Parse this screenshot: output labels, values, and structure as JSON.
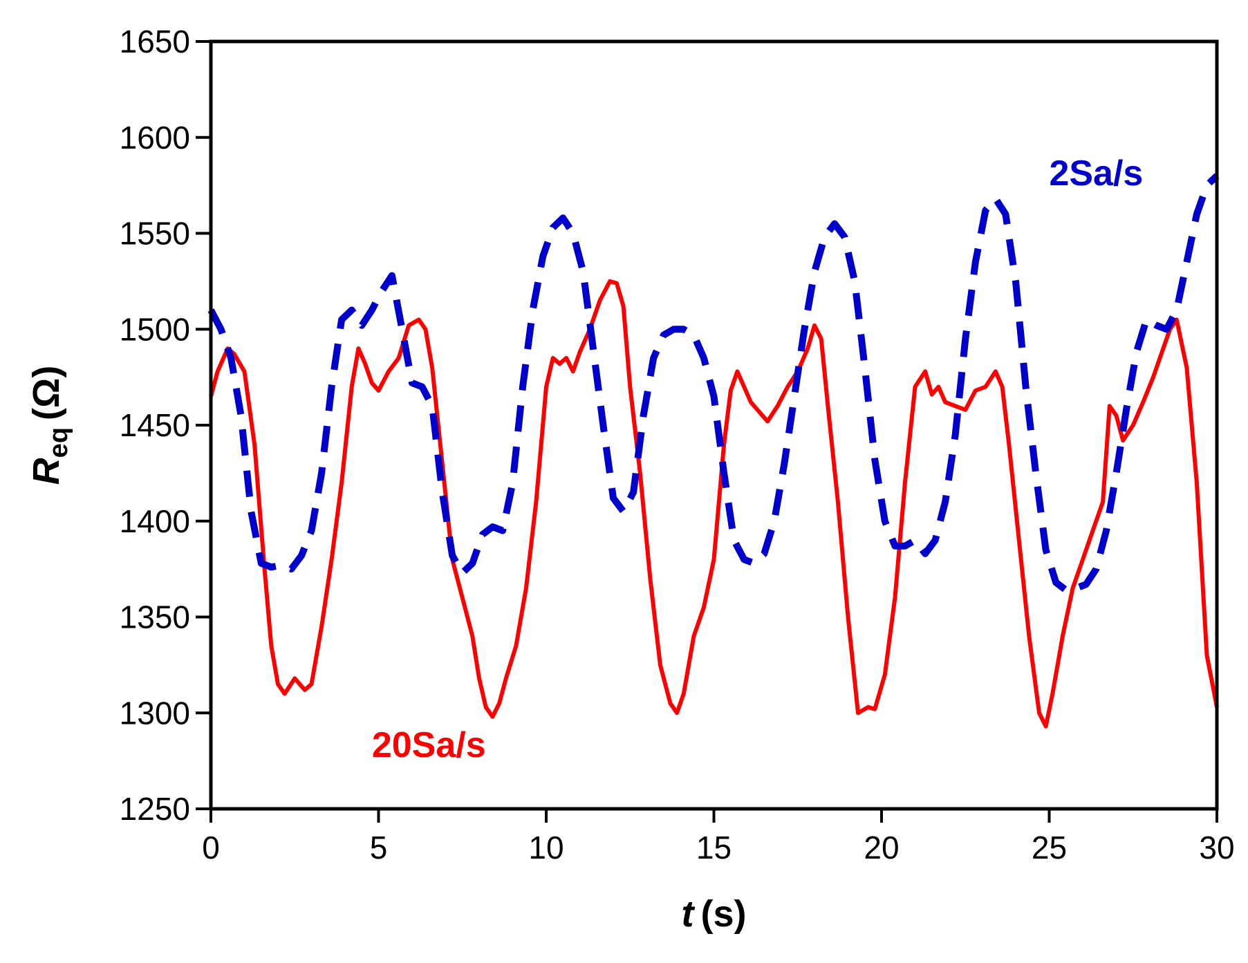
{
  "chart_data": {
    "type": "line",
    "title": "",
    "xlabel": {
      "var": "t",
      "unit": "(s)"
    },
    "ylabel": {
      "var": "R",
      "sub": "eq",
      "unit": "(Ω)"
    },
    "xlim": [
      0,
      30
    ],
    "ylim": [
      1250,
      1650
    ],
    "xticks": [
      0,
      5,
      10,
      15,
      20,
      25,
      30
    ],
    "yticks": [
      1250,
      1300,
      1350,
      1400,
      1450,
      1500,
      1550,
      1600,
      1650
    ],
    "grid": false,
    "legend": "none",
    "series": [
      {
        "name": "20Sa/s",
        "color": "#ff0000",
        "style": "solid",
        "label_at": [
          6.5,
          1277
        ],
        "x": [
          0,
          0.2,
          0.5,
          0.7,
          1.0,
          1.3,
          1.6,
          1.8,
          2.0,
          2.2,
          2.5,
          2.8,
          3.0,
          3.3,
          3.6,
          3.9,
          4.2,
          4.4,
          4.6,
          4.8,
          5.0,
          5.3,
          5.6,
          5.9,
          6.2,
          6.4,
          6.6,
          6.9,
          7.2,
          7.5,
          7.8,
          8.0,
          8.2,
          8.4,
          8.6,
          8.8,
          9.1,
          9.4,
          9.7,
          10.0,
          10.2,
          10.4,
          10.6,
          10.8,
          11.0,
          11.3,
          11.6,
          11.9,
          12.1,
          12.3,
          12.5,
          12.8,
          13.1,
          13.4,
          13.7,
          13.9,
          14.1,
          14.4,
          14.7,
          15.0,
          15.3,
          15.5,
          15.7,
          15.9,
          16.1,
          16.3,
          16.6,
          16.9,
          17.2,
          17.5,
          17.8,
          18.0,
          18.2,
          18.4,
          18.7,
          19.0,
          19.3,
          19.6,
          19.8,
          20.1,
          20.4,
          20.7,
          21.0,
          21.3,
          21.5,
          21.7,
          21.9,
          22.2,
          22.5,
          22.8,
          23.1,
          23.4,
          23.6,
          23.8,
          24.1,
          24.4,
          24.7,
          24.9,
          25.1,
          25.4,
          25.7,
          26.0,
          26.3,
          26.6,
          26.8,
          27.0,
          27.2,
          27.5,
          27.8,
          28.1,
          28.4,
          28.6,
          28.8,
          29.1,
          29.4,
          29.7,
          30.0
        ],
        "y": [
          1465,
          1478,
          1490,
          1487,
          1478,
          1440,
          1375,
          1335,
          1315,
          1310,
          1318,
          1312,
          1315,
          1345,
          1380,
          1420,
          1470,
          1490,
          1482,
          1472,
          1468,
          1478,
          1485,
          1502,
          1505,
          1500,
          1480,
          1430,
          1380,
          1360,
          1340,
          1318,
          1303,
          1298,
          1305,
          1318,
          1335,
          1365,
          1410,
          1470,
          1485,
          1482,
          1485,
          1478,
          1488,
          1500,
          1515,
          1525,
          1524,
          1512,
          1470,
          1425,
          1370,
          1325,
          1305,
          1300,
          1310,
          1340,
          1355,
          1380,
          1440,
          1468,
          1478,
          1470,
          1462,
          1458,
          1452,
          1460,
          1470,
          1478,
          1490,
          1502,
          1495,
          1460,
          1410,
          1350,
          1300,
          1303,
          1302,
          1320,
          1360,
          1420,
          1470,
          1478,
          1466,
          1470,
          1462,
          1460,
          1458,
          1468,
          1470,
          1478,
          1470,
          1440,
          1390,
          1340,
          1300,
          1293,
          1310,
          1340,
          1365,
          1380,
          1395,
          1410,
          1460,
          1455,
          1442,
          1450,
          1462,
          1475,
          1490,
          1500,
          1505,
          1480,
          1420,
          1330,
          1303
        ]
      },
      {
        "name": "2Sa/s",
        "color": "#0000cc",
        "style": "dashed",
        "label_at": [
          26.4,
          1575
        ],
        "x": [
          0,
          0.3,
          0.6,
          0.9,
          1.2,
          1.5,
          1.8,
          2.1,
          2.4,
          2.7,
          3.0,
          3.3,
          3.6,
          3.9,
          4.2,
          4.5,
          4.8,
          5.1,
          5.4,
          5.7,
          6.0,
          6.3,
          6.6,
          6.9,
          7.2,
          7.5,
          7.8,
          8.1,
          8.4,
          8.7,
          9.0,
          9.3,
          9.6,
          9.9,
          10.2,
          10.5,
          10.8,
          11.1,
          11.4,
          11.7,
          12.0,
          12.3,
          12.6,
          12.9,
          13.2,
          13.5,
          13.8,
          14.1,
          14.4,
          14.7,
          15.0,
          15.3,
          15.6,
          15.9,
          16.2,
          16.5,
          16.8,
          17.1,
          17.4,
          17.7,
          18.0,
          18.3,
          18.6,
          18.9,
          19.2,
          19.5,
          19.8,
          20.1,
          20.4,
          20.7,
          21.0,
          21.3,
          21.6,
          21.9,
          22.2,
          22.5,
          22.8,
          23.1,
          23.4,
          23.7,
          24.0,
          24.3,
          24.6,
          24.9,
          25.2,
          25.5,
          25.8,
          26.1,
          26.4,
          26.7,
          27.0,
          27.3,
          27.6,
          27.9,
          28.2,
          28.5,
          28.8,
          29.1,
          29.4,
          29.7,
          30.0
        ],
        "y": [
          1510,
          1500,
          1485,
          1455,
          1405,
          1378,
          1376,
          1377,
          1375,
          1382,
          1395,
          1425,
          1470,
          1505,
          1510,
          1502,
          1510,
          1520,
          1528,
          1500,
          1472,
          1470,
          1460,
          1415,
          1382,
          1373,
          1378,
          1393,
          1397,
          1395,
          1420,
          1470,
          1510,
          1538,
          1553,
          1558,
          1550,
          1530,
          1490,
          1450,
          1412,
          1405,
          1415,
          1455,
          1485,
          1497,
          1500,
          1500,
          1497,
          1485,
          1465,
          1425,
          1390,
          1380,
          1378,
          1383,
          1400,
          1430,
          1465,
          1500,
          1530,
          1548,
          1555,
          1548,
          1525,
          1480,
          1432,
          1400,
          1387,
          1387,
          1390,
          1383,
          1390,
          1410,
          1445,
          1495,
          1535,
          1562,
          1568,
          1560,
          1525,
          1470,
          1425,
          1385,
          1368,
          1364,
          1365,
          1367,
          1375,
          1395,
          1425,
          1458,
          1488,
          1505,
          1502,
          1500,
          1510,
          1535,
          1560,
          1575,
          1580
        ]
      }
    ]
  }
}
